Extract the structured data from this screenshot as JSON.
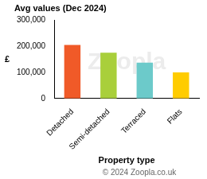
{
  "chart_data": {
    "type": "bar",
    "title": "Avg values (Dec 2024)",
    "x_label": "Property type",
    "y_label": "£",
    "categories": [
      "Detached",
      "Semi-detached",
      "Terraced",
      "Flats"
    ],
    "values": [
      205000,
      175000,
      137000,
      100000
    ],
    "colors": [
      "#f05a28",
      "#a9cf3b",
      "#6ccaca",
      "#ffcc00"
    ],
    "ylim": [
      0,
      300000
    ],
    "yticks": [
      0,
      {
        "value": 100000,
        "label": "100,000"
      },
      {
        "value": 200000,
        "label": "200,000"
      },
      {
        "value": 300000,
        "label": "300,000"
      }
    ],
    "grid": false,
    "watermark": "Zoopla",
    "footer": "© 2024 Zoopla.co.uk"
  }
}
